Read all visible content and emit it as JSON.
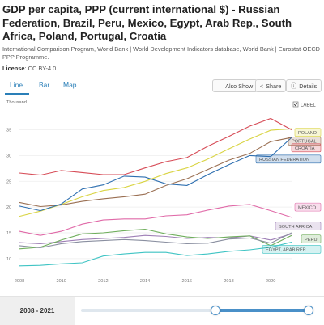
{
  "title": "GDP per capita, PPP (current international $) - Russian Federation, Brazil, Peru, Mexico, Egypt, Arab Rep., South Africa, Poland, Portugal, Croatia",
  "subtitle": "International Comparison Program, World Bank | World Development Indicators database, World Bank | Eurostat-OECD PPP Programme.",
  "license": {
    "label": "License",
    "value": ": CC BY-4.0"
  },
  "tabs": [
    {
      "label": "Line",
      "active": true
    },
    {
      "label": "Bar",
      "active": false
    },
    {
      "label": "Map",
      "active": false
    }
  ],
  "buttons": {
    "also_show": "Also Show",
    "share": "Share",
    "details": "Details"
  },
  "label_toggle": {
    "label": "LABEL",
    "checked": true
  },
  "range": {
    "label": "2008 - 2021",
    "start": 2008,
    "end": 2021
  },
  "colors": {
    "accent": "#2a7fb8",
    "russia": "#2e6fb0",
    "poland": "#d9d443",
    "portugal": "#9a6f52",
    "croatia": "#d64a55",
    "mexico": "#e06aa8",
    "south_africa": "#9e7fb6",
    "peru": "#6fae5c",
    "brazil": "#8a8fa0",
    "egypt": "#3fc4c4"
  },
  "chart_data": {
    "type": "line",
    "ylabel": "Thousand",
    "xlim": [
      2008,
      2021
    ],
    "ylim": [
      7,
      39
    ],
    "x_ticks": [
      2008,
      2010,
      2012,
      2014,
      2016,
      2018,
      2020
    ],
    "y_ticks": [
      10,
      15,
      20,
      25,
      30,
      35
    ],
    "x": [
      2008,
      2009,
      2010,
      2011,
      2012,
      2013,
      2014,
      2015,
      2016,
      2017,
      2018,
      2019,
      2020,
      2021
    ],
    "series": [
      {
        "name": "POLAND",
        "key": "poland",
        "values": [
          18.2,
          19.2,
          20.5,
          22.0,
          23.2,
          23.8,
          25.0,
          26.5,
          27.6,
          29.3,
          31.3,
          33.2,
          34.9,
          35.2
        ]
      },
      {
        "name": "PORTUGAL",
        "key": "portugal",
        "values": [
          20.9,
          20.1,
          20.4,
          21.1,
          21.6,
          22.0,
          22.5,
          24.2,
          25.5,
          27.3,
          29.1,
          30.4,
          32.7,
          33.5
        ]
      },
      {
        "name": "CROATIA",
        "key": "croatia",
        "values": [
          26.6,
          26.2,
          27.1,
          26.7,
          26.3,
          26.3,
          27.6,
          28.8,
          29.6,
          31.8,
          33.7,
          35.7,
          37.2,
          35.0
        ]
      },
      {
        "name": "RUSSIAN FEDERATION",
        "key": "russia",
        "values": [
          20.2,
          19.3,
          20.6,
          23.5,
          24.3,
          26.0,
          25.8,
          24.5,
          24.2,
          26.3,
          28.2,
          30.0,
          29.8,
          33.5
        ]
      },
      {
        "name": "MEXICO",
        "key": "mexico",
        "values": [
          15.3,
          14.5,
          15.3,
          16.7,
          17.5,
          17.7,
          17.7,
          18.3,
          18.5,
          19.4,
          20.2,
          20.5,
          19.3,
          18.0
        ]
      },
      {
        "name": "SOUTH AFRICA",
        "key": "south_africa",
        "values": [
          13.1,
          12.9,
          13.3,
          13.7,
          13.9,
          14.1,
          14.5,
          14.3,
          13.9,
          14.1,
          14.0,
          14.4,
          13.6,
          14.8
        ]
      },
      {
        "name": "PERU",
        "key": "peru",
        "values": [
          11.9,
          12.2,
          13.6,
          14.8,
          15.0,
          15.4,
          15.7,
          14.8,
          14.2,
          13.9,
          14.2,
          14.4,
          12.5,
          14.5
        ]
      },
      {
        "name": "BRAZIL",
        "key": "brazil",
        "values": [
          12.5,
          12.1,
          12.9,
          13.3,
          13.5,
          13.7,
          13.5,
          13.2,
          12.9,
          13.0,
          13.8,
          14.0,
          13.0,
          15.0
        ]
      },
      {
        "name": "EGYPT, ARAB REP.",
        "key": "egypt",
        "values": [
          8.6,
          8.7,
          9.0,
          9.2,
          10.5,
          10.9,
          11.2,
          11.2,
          10.6,
          10.9,
          11.4,
          11.7,
          12.2,
          13.2
        ]
      }
    ],
    "labels": [
      {
        "text": "POLAND",
        "key": "poland",
        "y": 34.5
      },
      {
        "text": "PORTUGAL",
        "key": "portugal",
        "y": 32.8
      },
      {
        "text": "CROATIA",
        "key": "croatia",
        "y": 31.5
      },
      {
        "text": "RUSSIAN FEDERATION",
        "key": "russia",
        "y": 29.3
      },
      {
        "text": "MEXICO",
        "key": "mexico",
        "y": 20.0
      },
      {
        "text": "SOUTH AFRICA",
        "key": "south_africa",
        "y": 16.3
      },
      {
        "text": "PERU",
        "key": "peru",
        "y": 13.8
      },
      {
        "text": "EGYPT, ARAB REP.",
        "key": "egypt",
        "y": 11.8
      }
    ]
  }
}
